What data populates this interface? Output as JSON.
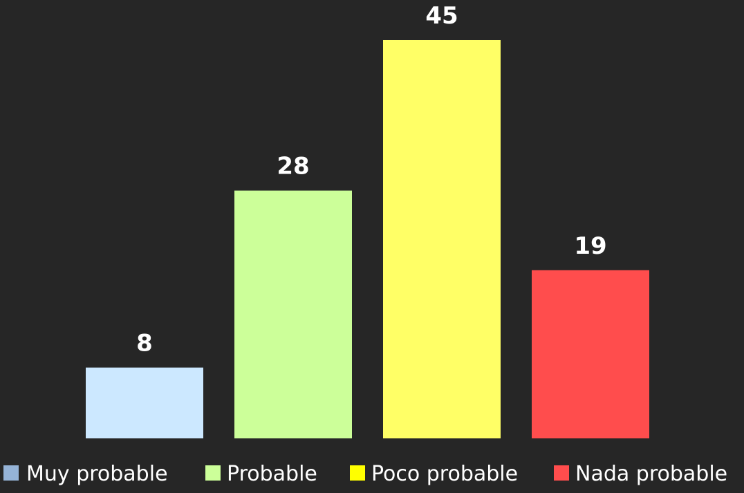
{
  "chart_data": {
    "type": "bar",
    "categories": [
      "Muy probable",
      "Probable",
      "Poco probable",
      "Nada probable"
    ],
    "series": [
      {
        "name": "Muy probable",
        "values": [
          8,
          null,
          null,
          null
        ]
      },
      {
        "name": "Probable",
        "values": [
          null,
          28,
          null,
          null
        ]
      },
      {
        "name": "Poco probable",
        "values": [
          null,
          null,
          45,
          null
        ]
      },
      {
        "name": "Nada probable",
        "values": [
          null,
          null,
          null,
          19
        ]
      }
    ],
    "values": [
      8,
      28,
      45,
      19
    ],
    "data_labels": [
      "8",
      "28",
      "45",
      "19"
    ],
    "colors": [
      "#cce8ff",
      "#ccff99",
      "#ffff66",
      "#ff4d4d"
    ],
    "legend_colors": [
      "#95b3d7",
      "#ccff99",
      "#ffff00",
      "#ff4d4d"
    ],
    "title": "",
    "xlabel": "",
    "ylabel": "",
    "ylim": [
      0,
      45
    ],
    "grid": false,
    "legend_position": "bottom",
    "background": "#262626"
  }
}
